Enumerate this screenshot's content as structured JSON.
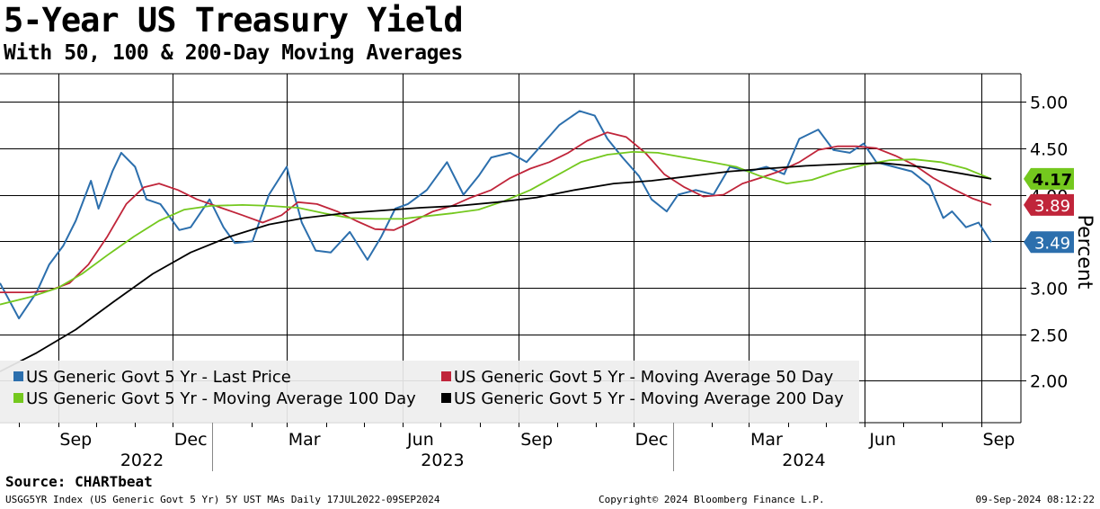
{
  "chart_data": {
    "type": "line",
    "title": "5-Year US Treasury Yield",
    "subtitle": "With 50, 100 & 200-Day Moving Averages",
    "ylabel": "Percent",
    "ylim": [
      1.55,
      5.3
    ],
    "y_ticks": [
      "5.00",
      "4.50",
      "4.00",
      "3.50",
      "3.00",
      "2.50",
      "2.00"
    ],
    "y_tick_values": [
      5.0,
      4.5,
      4.0,
      3.5,
      3.0,
      2.5,
      2.0
    ],
    "x_range": [
      "2022-07-17",
      "2024-09-09"
    ],
    "x_month_ticks": [
      {
        "label": "Sep",
        "date": "2022-09-15"
      },
      {
        "label": "Dec",
        "date": "2022-12-15"
      },
      {
        "label": "Mar",
        "date": "2023-03-15"
      },
      {
        "label": "Jun",
        "date": "2023-06-15"
      },
      {
        "label": "Sep",
        "date": "2023-09-15"
      },
      {
        "label": "Dec",
        "date": "2023-12-15"
      },
      {
        "label": "Mar",
        "date": "2024-03-15"
      },
      {
        "label": "Jun",
        "date": "2024-06-15"
      },
      {
        "label": "Sep",
        "date": "2024-09-15"
      }
    ],
    "x_year_labels": [
      "2022",
      "2023",
      "2024"
    ],
    "x_year_boundaries": [
      "2023-01-01",
      "2024-01-01"
    ],
    "grid": true,
    "legend_position": "bottom-left",
    "series": [
      {
        "name": "US Generic Govt 5 Yr - Last Price",
        "color": "#2c6fad",
        "end_label": "3.49",
        "points": [
          [
            "2022-07-17",
            3.05
          ],
          [
            "2022-08-01",
            2.67
          ],
          [
            "2022-08-15",
            2.95
          ],
          [
            "2022-08-25",
            3.25
          ],
          [
            "2022-09-05",
            3.45
          ],
          [
            "2022-09-15",
            3.72
          ],
          [
            "2022-09-27",
            4.15
          ],
          [
            "2022-10-03",
            3.85
          ],
          [
            "2022-10-14",
            4.25
          ],
          [
            "2022-10-21",
            4.45
          ],
          [
            "2022-11-01",
            4.3
          ],
          [
            "2022-11-10",
            3.95
          ],
          [
            "2022-11-21",
            3.9
          ],
          [
            "2022-12-06",
            3.62
          ],
          [
            "2022-12-15",
            3.65
          ],
          [
            "2022-12-30",
            3.95
          ],
          [
            "2023-01-10",
            3.65
          ],
          [
            "2023-01-19",
            3.48
          ],
          [
            "2023-02-02",
            3.5
          ],
          [
            "2023-02-15",
            4.0
          ],
          [
            "2023-03-01",
            4.3
          ],
          [
            "2023-03-13",
            3.7
          ],
          [
            "2023-03-24",
            3.4
          ],
          [
            "2023-04-05",
            3.38
          ],
          [
            "2023-04-20",
            3.6
          ],
          [
            "2023-05-04",
            3.3
          ],
          [
            "2023-05-15",
            3.55
          ],
          [
            "2023-05-26",
            3.85
          ],
          [
            "2023-06-05",
            3.9
          ],
          [
            "2023-06-20",
            4.05
          ],
          [
            "2023-07-06",
            4.35
          ],
          [
            "2023-07-19",
            4.0
          ],
          [
            "2023-07-31",
            4.2
          ],
          [
            "2023-08-10",
            4.4
          ],
          [
            "2023-08-25",
            4.45
          ],
          [
            "2023-09-07",
            4.35
          ],
          [
            "2023-09-20",
            4.55
          ],
          [
            "2023-10-03",
            4.75
          ],
          [
            "2023-10-19",
            4.9
          ],
          [
            "2023-10-31",
            4.85
          ],
          [
            "2023-11-10",
            4.6
          ],
          [
            "2023-11-22",
            4.4
          ],
          [
            "2023-12-05",
            4.2
          ],
          [
            "2023-12-15",
            3.95
          ],
          [
            "2023-12-27",
            3.82
          ],
          [
            "2024-01-05",
            4.0
          ],
          [
            "2024-01-19",
            4.05
          ],
          [
            "2024-02-02",
            4.0
          ],
          [
            "2024-02-15",
            4.3
          ],
          [
            "2024-03-01",
            4.25
          ],
          [
            "2024-03-15",
            4.3
          ],
          [
            "2024-03-29",
            4.22
          ],
          [
            "2024-04-10",
            4.6
          ],
          [
            "2024-04-25",
            4.7
          ],
          [
            "2024-05-07",
            4.48
          ],
          [
            "2024-05-20",
            4.45
          ],
          [
            "2024-05-31",
            4.55
          ],
          [
            "2024-06-10",
            4.35
          ],
          [
            "2024-06-24",
            4.3
          ],
          [
            "2024-07-08",
            4.25
          ],
          [
            "2024-07-22",
            4.1
          ],
          [
            "2024-08-02",
            3.75
          ],
          [
            "2024-08-09",
            3.82
          ],
          [
            "2024-08-20",
            3.65
          ],
          [
            "2024-08-30",
            3.7
          ],
          [
            "2024-09-09",
            3.49
          ]
        ]
      },
      {
        "name": "US Generic Govt 5 Yr - Moving Average 50 Day",
        "color": "#c0253a",
        "end_label": "3.89",
        "points": [
          [
            "2022-07-17",
            2.95
          ],
          [
            "2022-08-10",
            2.95
          ],
          [
            "2022-08-25",
            2.97
          ],
          [
            "2022-09-10",
            3.05
          ],
          [
            "2022-09-25",
            3.25
          ],
          [
            "2022-10-10",
            3.55
          ],
          [
            "2022-10-25",
            3.9
          ],
          [
            "2022-11-08",
            4.08
          ],
          [
            "2022-11-20",
            4.12
          ],
          [
            "2022-12-05",
            4.05
          ],
          [
            "2022-12-20",
            3.95
          ],
          [
            "2023-01-10",
            3.85
          ],
          [
            "2023-01-25",
            3.78
          ],
          [
            "2023-02-10",
            3.7
          ],
          [
            "2023-02-25",
            3.78
          ],
          [
            "2023-03-10",
            3.92
          ],
          [
            "2023-03-25",
            3.9
          ],
          [
            "2023-04-10",
            3.82
          ],
          [
            "2023-04-25",
            3.72
          ],
          [
            "2023-05-10",
            3.63
          ],
          [
            "2023-05-25",
            3.62
          ],
          [
            "2023-06-10",
            3.72
          ],
          [
            "2023-06-25",
            3.82
          ],
          [
            "2023-07-10",
            3.88
          ],
          [
            "2023-07-25",
            3.97
          ],
          [
            "2023-08-10",
            4.05
          ],
          [
            "2023-08-25",
            4.18
          ],
          [
            "2023-09-10",
            4.28
          ],
          [
            "2023-09-25",
            4.35
          ],
          [
            "2023-10-10",
            4.45
          ],
          [
            "2023-10-25",
            4.58
          ],
          [
            "2023-11-10",
            4.67
          ],
          [
            "2023-11-25",
            4.62
          ],
          [
            "2023-12-10",
            4.45
          ],
          [
            "2023-12-25",
            4.22
          ],
          [
            "2024-01-10",
            4.08
          ],
          [
            "2024-01-25",
            3.98
          ],
          [
            "2024-02-10",
            4.0
          ],
          [
            "2024-02-25",
            4.12
          ],
          [
            "2024-03-10",
            4.18
          ],
          [
            "2024-03-25",
            4.25
          ],
          [
            "2024-04-10",
            4.35
          ],
          [
            "2024-04-25",
            4.48
          ],
          [
            "2024-05-10",
            4.52
          ],
          [
            "2024-05-25",
            4.52
          ],
          [
            "2024-06-10",
            4.5
          ],
          [
            "2024-06-25",
            4.42
          ],
          [
            "2024-07-10",
            4.32
          ],
          [
            "2024-07-25",
            4.18
          ],
          [
            "2024-08-10",
            4.06
          ],
          [
            "2024-08-25",
            3.96
          ],
          [
            "2024-09-09",
            3.89
          ]
        ]
      },
      {
        "name": "US Generic Govt 5 Yr - Moving Average 100 Day",
        "color": "#74c81e",
        "end_label": "4.17",
        "points": [
          [
            "2022-07-17",
            2.82
          ],
          [
            "2022-08-10",
            2.9
          ],
          [
            "2022-09-01",
            3.0
          ],
          [
            "2022-09-20",
            3.15
          ],
          [
            "2022-10-10",
            3.35
          ],
          [
            "2022-10-31",
            3.55
          ],
          [
            "2022-11-20",
            3.72
          ],
          [
            "2022-12-10",
            3.84
          ],
          [
            "2022-12-31",
            3.88
          ],
          [
            "2023-01-25",
            3.89
          ],
          [
            "2023-02-15",
            3.88
          ],
          [
            "2023-03-10",
            3.86
          ],
          [
            "2023-03-31",
            3.8
          ],
          [
            "2023-04-20",
            3.75
          ],
          [
            "2023-05-10",
            3.74
          ],
          [
            "2023-05-31",
            3.74
          ],
          [
            "2023-06-20",
            3.77
          ],
          [
            "2023-07-10",
            3.8
          ],
          [
            "2023-07-31",
            3.84
          ],
          [
            "2023-08-20",
            3.93
          ],
          [
            "2023-09-10",
            4.05
          ],
          [
            "2023-09-30",
            4.2
          ],
          [
            "2023-10-20",
            4.35
          ],
          [
            "2023-11-10",
            4.43
          ],
          [
            "2023-11-30",
            4.46
          ],
          [
            "2023-12-20",
            4.45
          ],
          [
            "2024-01-10",
            4.4
          ],
          [
            "2024-01-31",
            4.35
          ],
          [
            "2024-02-20",
            4.3
          ],
          [
            "2024-03-10",
            4.2
          ],
          [
            "2024-03-31",
            4.12
          ],
          [
            "2024-04-20",
            4.16
          ],
          [
            "2024-05-10",
            4.25
          ],
          [
            "2024-05-31",
            4.32
          ],
          [
            "2024-06-20",
            4.37
          ],
          [
            "2024-07-10",
            4.38
          ],
          [
            "2024-07-31",
            4.35
          ],
          [
            "2024-08-20",
            4.28
          ],
          [
            "2024-09-09",
            4.17
          ]
        ]
      },
      {
        "name": "US Generic Govt 5 Yr - Moving Average 200 Day",
        "color": "#000000",
        "end_label": "4.17",
        "points": [
          [
            "2022-07-17",
            2.1
          ],
          [
            "2022-08-15",
            2.3
          ],
          [
            "2022-09-15",
            2.55
          ],
          [
            "2022-10-15",
            2.85
          ],
          [
            "2022-11-15",
            3.15
          ],
          [
            "2022-12-15",
            3.38
          ],
          [
            "2023-01-15",
            3.55
          ],
          [
            "2023-02-15",
            3.68
          ],
          [
            "2023-03-15",
            3.75
          ],
          [
            "2023-04-15",
            3.8
          ],
          [
            "2023-05-15",
            3.83
          ],
          [
            "2023-06-15",
            3.86
          ],
          [
            "2023-07-15",
            3.88
          ],
          [
            "2023-08-15",
            3.92
          ],
          [
            "2023-09-15",
            3.97
          ],
          [
            "2023-10-15",
            4.05
          ],
          [
            "2023-11-15",
            4.12
          ],
          [
            "2023-12-15",
            4.15
          ],
          [
            "2024-01-15",
            4.2
          ],
          [
            "2024-02-15",
            4.25
          ],
          [
            "2024-03-15",
            4.28
          ],
          [
            "2024-04-15",
            4.31
          ],
          [
            "2024-05-15",
            4.33
          ],
          [
            "2024-06-15",
            4.34
          ],
          [
            "2024-07-15",
            4.3
          ],
          [
            "2024-08-15",
            4.23
          ],
          [
            "2024-09-09",
            4.17
          ]
        ]
      }
    ]
  },
  "source_label": "Source: CHARTbeat",
  "footer": {
    "left": "USGG5YR Index (US Generic Govt 5 Yr) 5Y UST MAs  Daily 17JUL2022-09SEP2024",
    "center": "Copyright© 2024 Bloomberg Finance L.P.",
    "right": "09-Sep-2024 08:12:22"
  }
}
